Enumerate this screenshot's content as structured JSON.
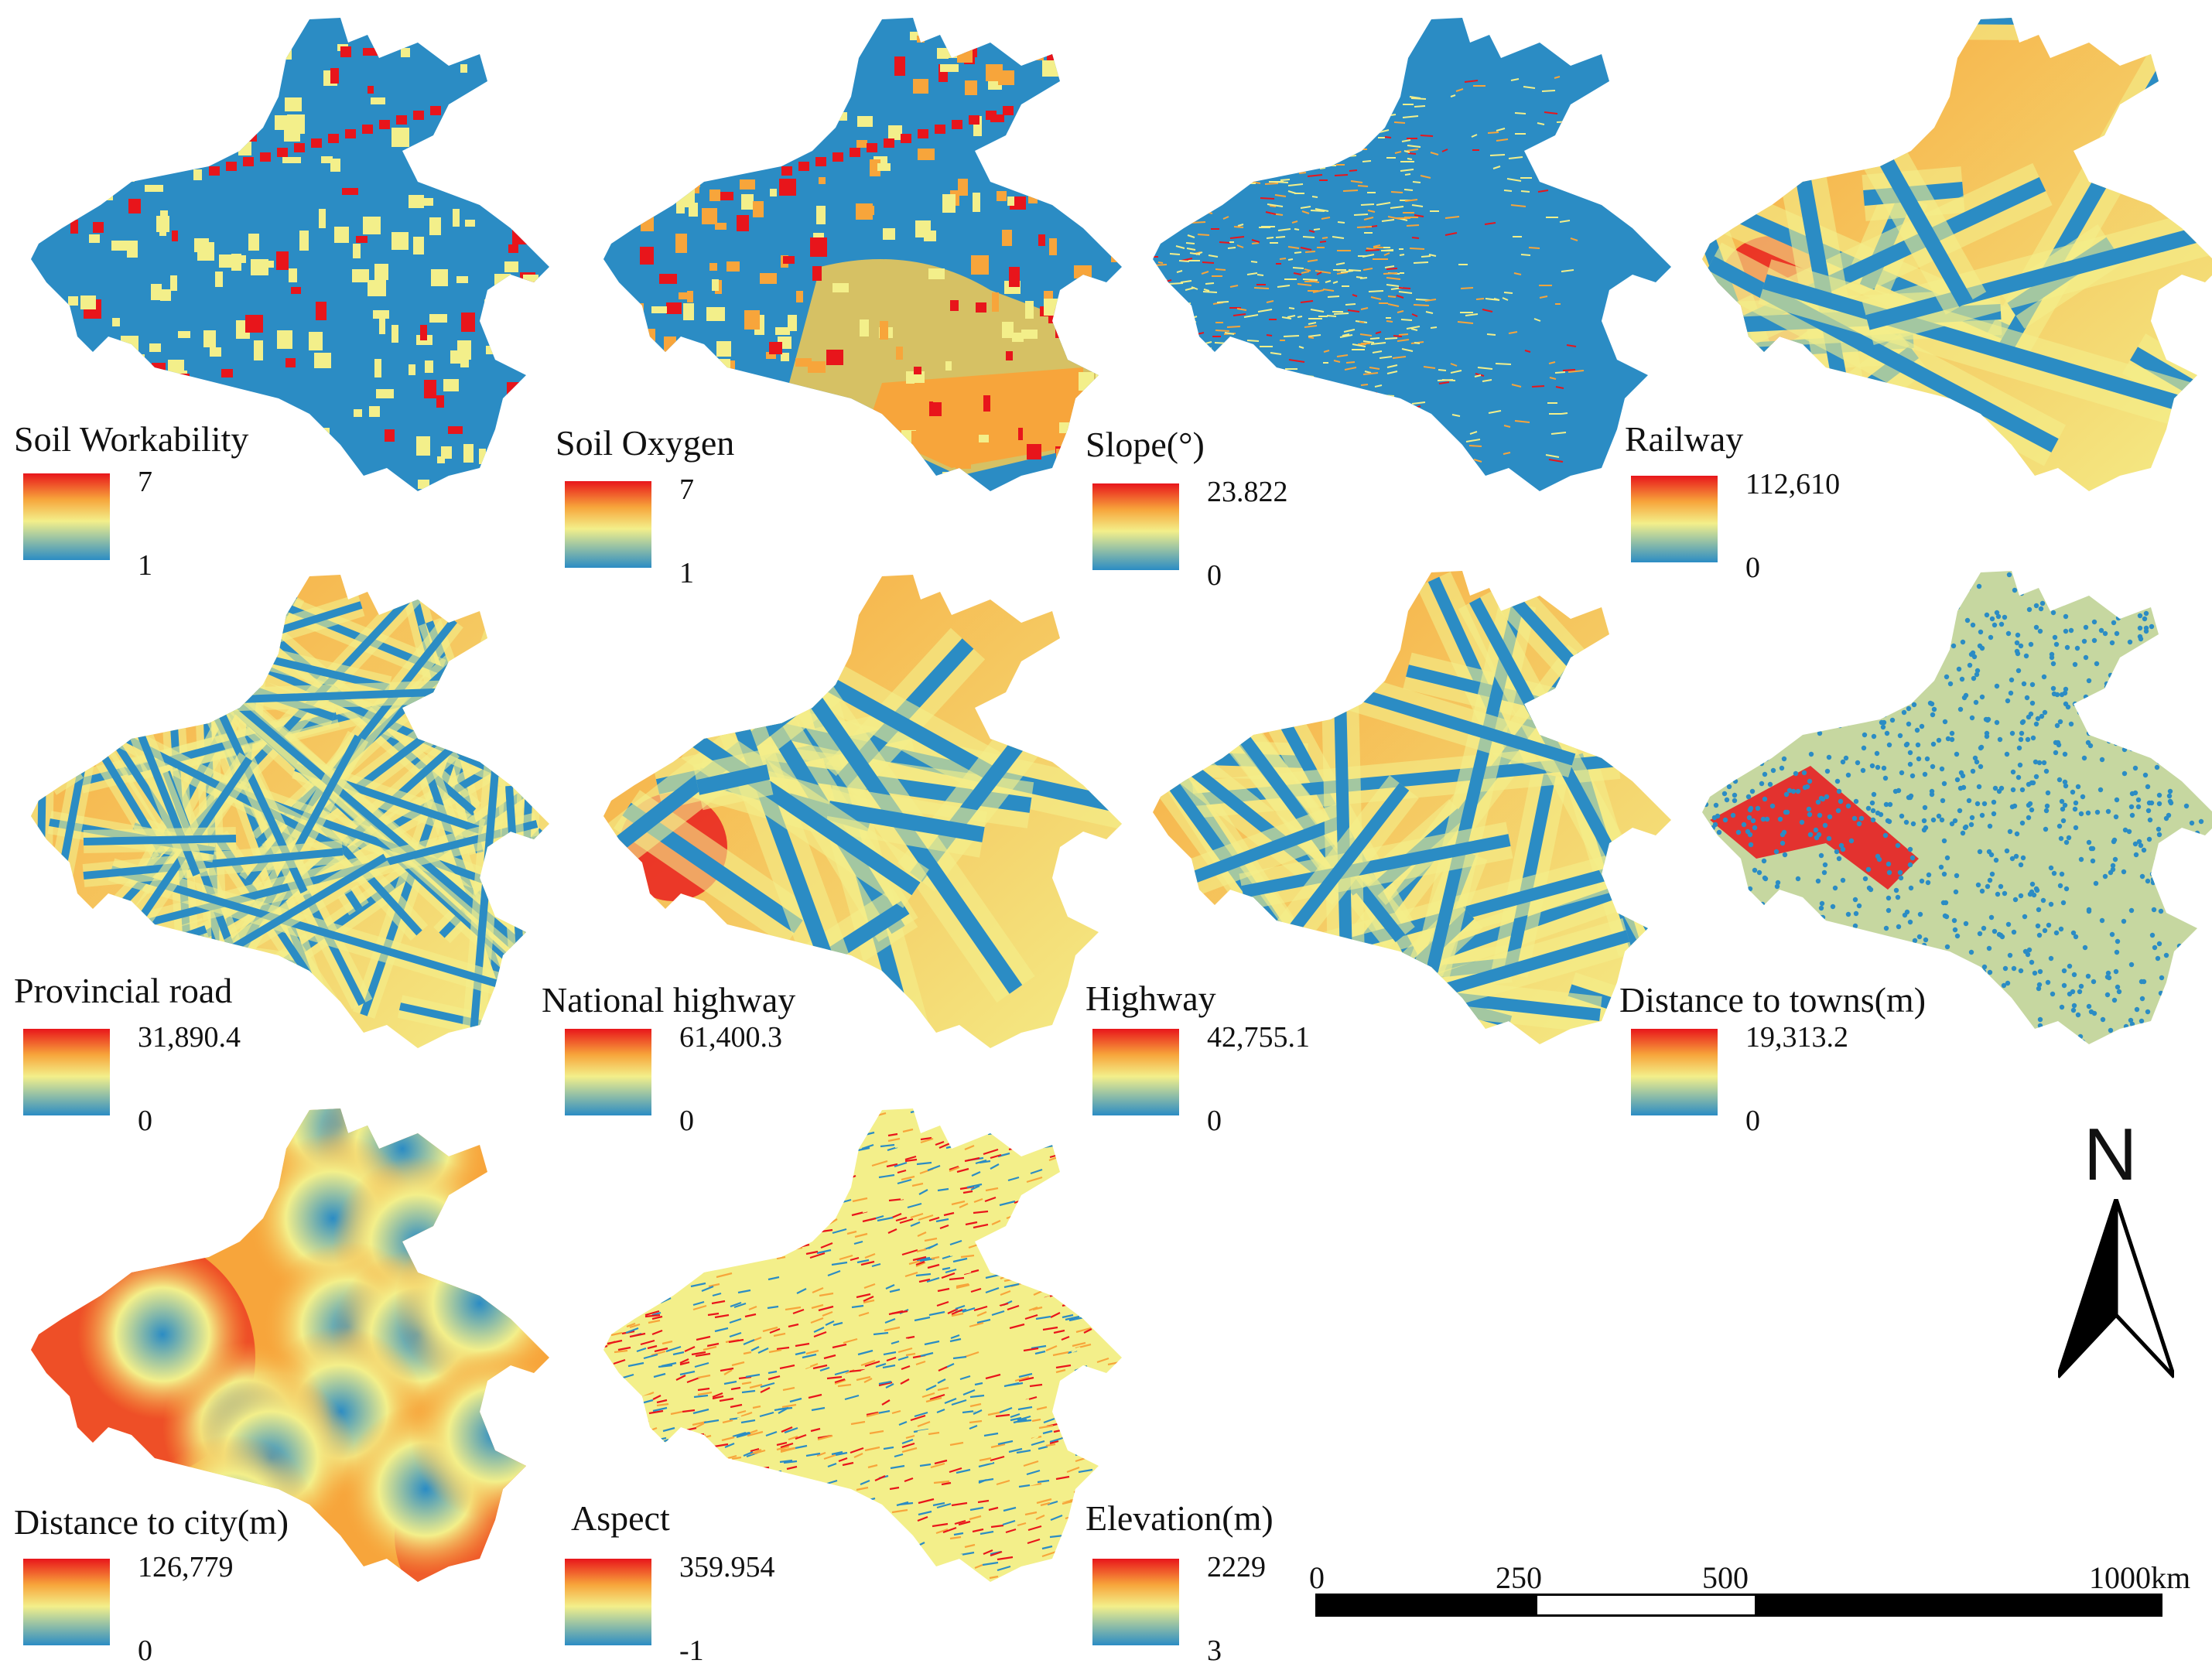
{
  "colors": {
    "low": "#2b8cc4",
    "mid": "#f3ef8a",
    "high": "#e8151b",
    "orange": "#f7a53b"
  },
  "icons": {
    "north": "north-arrow-icon"
  },
  "panels": [
    {
      "id": "soil-workability",
      "title": "Soil Workability",
      "max": "7",
      "min": "1",
      "pattern": "blocks"
    },
    {
      "id": "soil-oxygen",
      "title": "Soil Oxygen",
      "max": "7",
      "min": "1",
      "pattern": "blocks-orange"
    },
    {
      "id": "slope",
      "title": "Slope(°)",
      "max": "23.822",
      "min": "0",
      "pattern": "texture-west"
    },
    {
      "id": "railway",
      "title": "Railway",
      "max": "112,610",
      "min": "0",
      "pattern": "network-sparse"
    },
    {
      "id": "provincial-road",
      "title": "Provincial road",
      "max": "31,890.4",
      "min": "0",
      "pattern": "network-dense"
    },
    {
      "id": "national-highway",
      "title": "National highway",
      "max": "61,400.3",
      "min": "0",
      "pattern": "network-sparse"
    },
    {
      "id": "highway",
      "title": "Highway",
      "max": "42,755.1",
      "min": "0",
      "pattern": "network-medium"
    },
    {
      "id": "distance-to-towns",
      "title": "Distance to towns(m)",
      "max": "19,313.2",
      "min": "0",
      "pattern": "dots"
    },
    {
      "id": "distance-to-city",
      "title": "Distance to city(m)",
      "max": "126,779",
      "min": "0",
      "pattern": "rings"
    },
    {
      "id": "aspect",
      "title": "Aspect",
      "max": "359.954",
      "min": "-1",
      "pattern": "noise"
    },
    {
      "id": "elevation",
      "title": "Elevation(m)",
      "max": "2229",
      "min": "3",
      "pattern": "none"
    }
  ],
  "north": {
    "label": "N"
  },
  "scalebar": {
    "labels": [
      "0",
      "250",
      "500",
      "1000km"
    ]
  }
}
